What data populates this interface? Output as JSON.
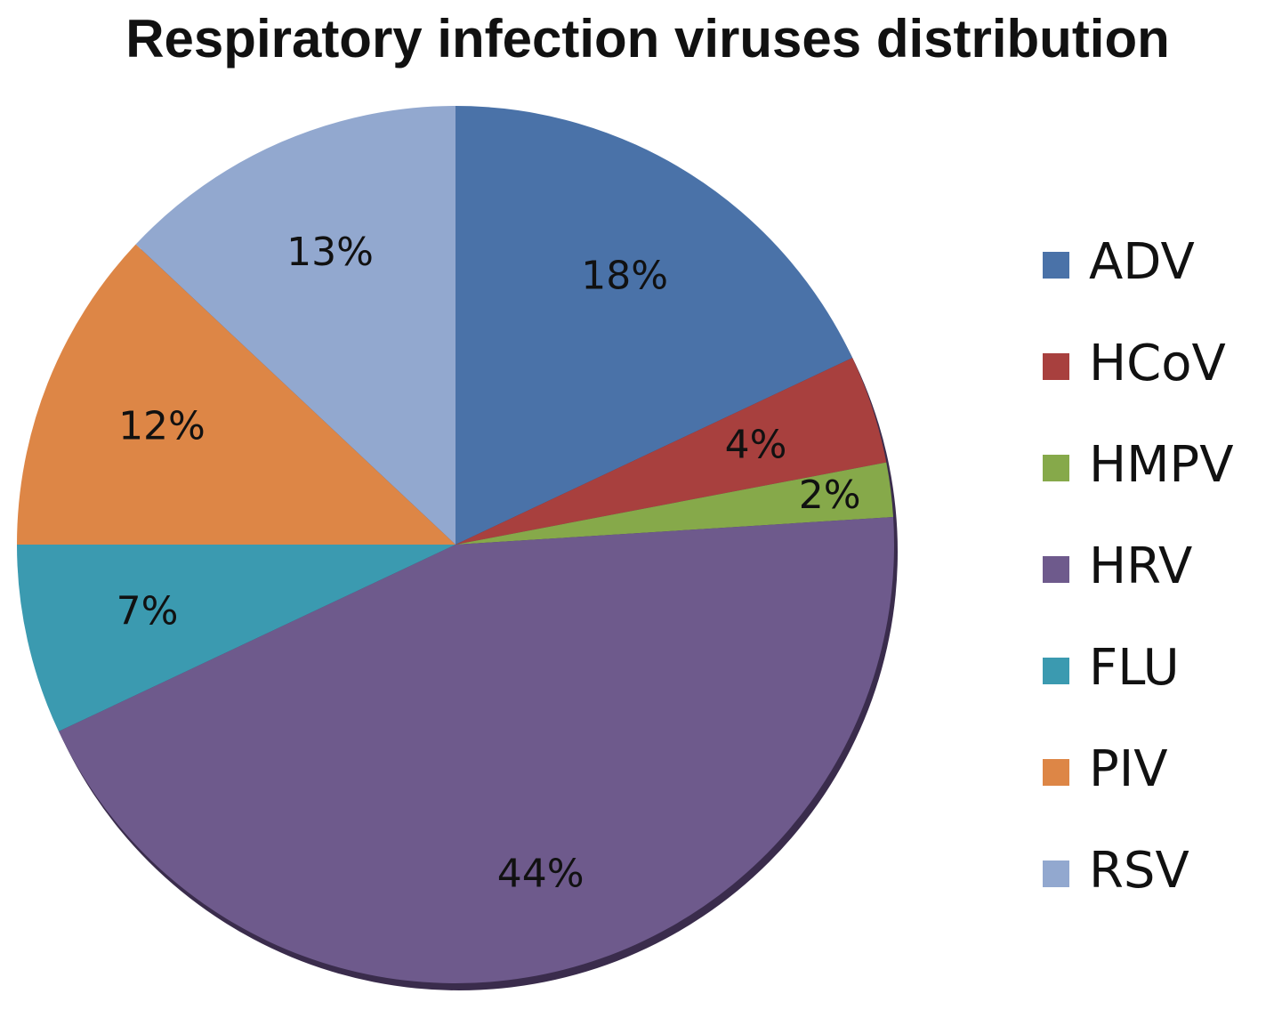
{
  "chart_data": {
    "type": "pie",
    "title": "Respiratory infection viruses distribution",
    "legend_position": "right",
    "slices": [
      {
        "name": "ADV",
        "value": 18,
        "label": "18%",
        "color": "#4a72a8"
      },
      {
        "name": "HCoV",
        "value": 4,
        "label": "4%",
        "color": "#a8403e"
      },
      {
        "name": "HMPV",
        "value": 2,
        "label": "2%",
        "color": "#86a94a"
      },
      {
        "name": "HRV",
        "value": 44,
        "label": "44%",
        "color": "#6e5a8c"
      },
      {
        "name": "FLU",
        "value": 7,
        "label": "7%",
        "color": "#3b9ab0"
      },
      {
        "name": "PIV",
        "value": 12,
        "label": "12%",
        "color": "#dd8646"
      },
      {
        "name": "RSV",
        "value": 13,
        "label": "13%",
        "color": "#92a8cf"
      }
    ]
  }
}
